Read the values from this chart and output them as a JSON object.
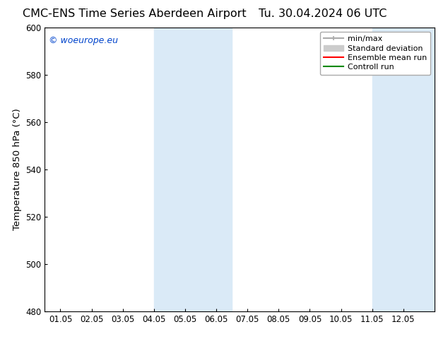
{
  "title_left": "CMC-ENS Time Series Aberdeen Airport",
  "title_right": "Tu. 30.04.2024 06 UTC",
  "ylabel": "Temperature 850 hPa (°C)",
  "x_labels": [
    "01.05",
    "02.05",
    "03.05",
    "04.05",
    "05.05",
    "06.05",
    "07.05",
    "08.05",
    "09.05",
    "10.05",
    "11.05",
    "12.05"
  ],
  "x_positions": [
    0,
    1,
    2,
    3,
    4,
    5,
    6,
    7,
    8,
    9,
    10,
    11
  ],
  "xlim": [
    -0.5,
    12.0
  ],
  "ylim": [
    480,
    600
  ],
  "yticks": [
    480,
    500,
    520,
    540,
    560,
    580,
    600
  ],
  "background_color": "#ffffff",
  "plot_bg_color": "#ffffff",
  "shaded_regions": [
    {
      "x_start": 3.0,
      "x_end": 5.5,
      "color": "#daeaf7"
    },
    {
      "x_start": 10.0,
      "x_end": 12.0,
      "color": "#daeaf7"
    }
  ],
  "watermark_text": "© woeurope.eu",
  "watermark_color": "#0044cc",
  "legend_items": [
    {
      "label": "min/max",
      "color": "#aaaaaa",
      "lw": 1.5
    },
    {
      "label": "Standard deviation",
      "color": "#cccccc",
      "lw": 6
    },
    {
      "label": "Ensemble mean run",
      "color": "#ff0000",
      "lw": 1.5
    },
    {
      "label": "Controll run",
      "color": "#008800",
      "lw": 1.5
    }
  ],
  "title_fontsize": 11.5,
  "tick_fontsize": 8.5,
  "ylabel_fontsize": 9.5,
  "legend_fontsize": 8,
  "border_color": "#000000",
  "fig_width": 6.34,
  "fig_height": 4.9,
  "dpi": 100
}
